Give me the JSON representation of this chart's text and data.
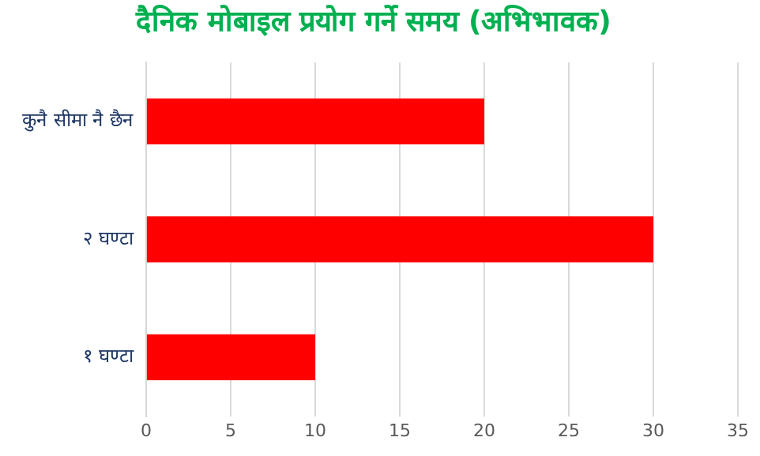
{
  "chart_data": {
    "type": "bar",
    "orientation": "horizontal",
    "title": "दैनिक मोबाइल प्रयोग गर्ने समय (अभिभावक)",
    "categories": [
      "कुनै सीमा नै छैन",
      "२ घण्टा",
      "१ घण्टा"
    ],
    "values": [
      20,
      30,
      10
    ],
    "color": "#ff0000",
    "xlim": [
      0,
      35
    ],
    "xticks": [
      0,
      5,
      10,
      15,
      20,
      25,
      30,
      35
    ],
    "grid": "x",
    "legend": false
  }
}
